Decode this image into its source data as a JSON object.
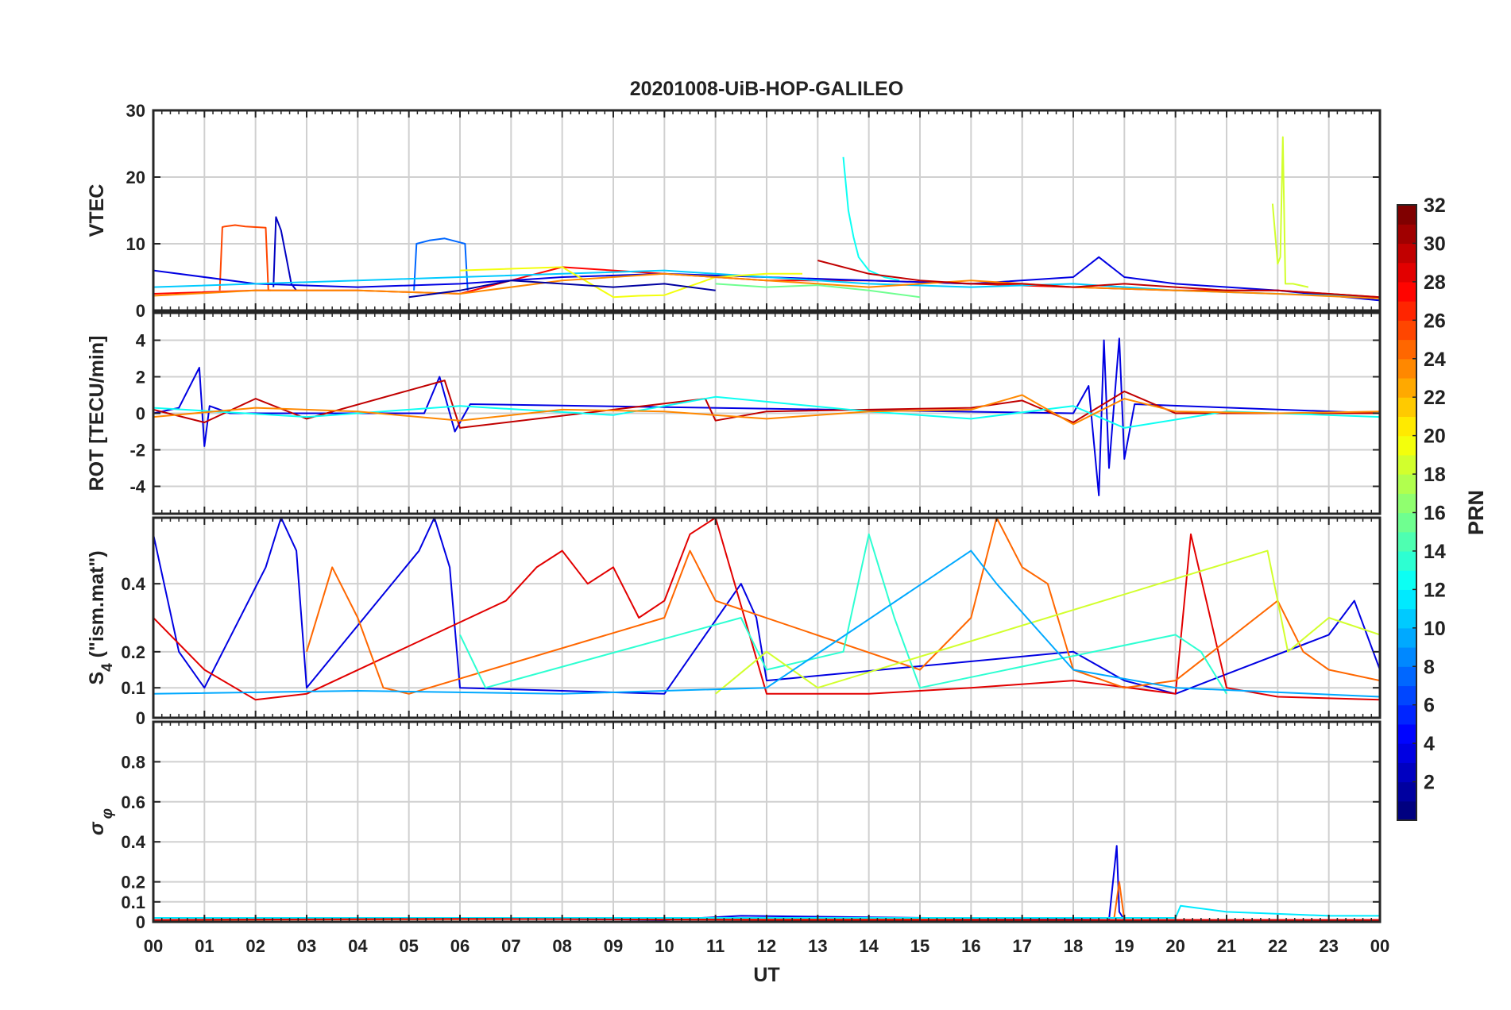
{
  "chart_data": {
    "title": "20201008-UiB-HOP-GALILEO",
    "xlabel": "UT",
    "x_ticks": [
      "00",
      "01",
      "02",
      "03",
      "04",
      "05",
      "06",
      "07",
      "08",
      "09",
      "10",
      "11",
      "12",
      "13",
      "14",
      "15",
      "16",
      "17",
      "18",
      "19",
      "20",
      "21",
      "22",
      "23",
      "00"
    ],
    "xlim": [
      0,
      24
    ],
    "grid": true,
    "colorbar": {
      "label": "PRN",
      "range": [
        1,
        32
      ],
      "ticks": [
        "2",
        "4",
        "6",
        "8",
        "10",
        "12",
        "14",
        "16",
        "18",
        "20",
        "22",
        "24",
        "26",
        "28",
        "30",
        "32"
      ],
      "colormap": "jet"
    },
    "panels": [
      {
        "type": "line",
        "ylabel": "VTEC",
        "ylim": [
          0,
          30
        ],
        "y_ticks": [
          "0",
          "10",
          "20",
          "30"
        ],
        "series": [
          {
            "prn": 26,
            "x": [
              1.3,
              1.35,
              1.4,
              1.6,
              1.8,
              2.0,
              2.2,
              2.25,
              2.3
            ],
            "y": [
              3,
              12.5,
              12.6,
              12.8,
              12.6,
              12.5,
              12.4,
              3,
              3
            ]
          },
          {
            "prn": 3,
            "x": [
              2.35,
              2.4,
              2.5,
              2.6,
              2.7,
              2.8
            ],
            "y": [
              3.5,
              14,
              12,
              8,
              4,
              3
            ]
          },
          {
            "prn": 8,
            "x": [
              5.1,
              5.15,
              5.4,
              5.7,
              6.0,
              6.1,
              6.15
            ],
            "y": [
              3,
              10,
              10.5,
              10.8,
              10.2,
              10,
              3
            ]
          },
          {
            "prn": 13,
            "x": [
              13.5,
              13.6,
              13.7,
              13.8,
              14.0,
              14.3,
              14.6
            ],
            "y": [
              23,
              15,
              11,
              8,
              6,
              5,
              4.5
            ]
          },
          {
            "prn": 19,
            "x": [
              21.9,
              22.0,
              22.05,
              22.1,
              22.15,
              22.3,
              22.6
            ],
            "y": [
              16,
              7,
              8,
              26,
              4,
              4,
              3.5
            ]
          },
          {
            "prn": 28,
            "x": [
              0,
              2,
              4,
              6,
              8,
              10,
              12,
              14,
              16,
              18,
              20,
              22,
              24
            ],
            "y": [
              2.5,
              3,
              3,
              2.5,
              6.5,
              5.5,
              4.5,
              4.5,
              4,
              3.5,
              3,
              3,
              2
            ]
          },
          {
            "prn": 4,
            "x": [
              0,
              2,
              4,
              6,
              8,
              10,
              12,
              14,
              16,
              18,
              18.5,
              19,
              20,
              22,
              24
            ],
            "y": [
              6,
              4,
              3.5,
              4,
              5,
              5.5,
              5,
              4.5,
              4,
              5,
              8,
              5,
              4,
              3,
              1.5
            ]
          },
          {
            "prn": 11,
            "x": [
              0,
              2,
              4,
              6,
              8,
              10,
              12,
              14,
              16,
              18,
              20,
              22,
              24
            ],
            "y": [
              3.5,
              4,
              4.5,
              5,
              5.5,
              6,
              5,
              4,
              3.5,
              4,
              3,
              2.5,
              2
            ]
          },
          {
            "prn": 20,
            "x": [
              6,
              8,
              9,
              9.5,
              10,
              11,
              12,
              12.7
            ],
            "y": [
              6,
              6.5,
              2,
              2.2,
              2.3,
              5,
              5.5,
              5.5
            ]
          },
          {
            "prn": 24,
            "x": [
              0,
              2,
              4,
              6,
              8,
              10,
              12,
              14,
              16,
              18,
              20,
              22,
              24
            ],
            "y": [
              2.2,
              3,
              3,
              2.5,
              4.5,
              5.5,
              4.5,
              3.5,
              4.5,
              3.5,
              3,
              2.5,
              1.8
            ]
          },
          {
            "prn": 16,
            "x": [
              11,
              12,
              13,
              14,
              15
            ],
            "y": [
              4,
              3.5,
              3.8,
              3,
              2
            ]
          },
          {
            "prn": 30,
            "x": [
              13,
              14,
              15,
              16,
              17,
              18,
              19,
              20,
              21,
              22,
              23,
              24
            ],
            "y": [
              7.5,
              5.5,
              4.5,
              4,
              4,
              3.5,
              4,
              3.5,
              3,
              3,
              2.5,
              2
            ]
          },
          {
            "prn": 2,
            "x": [
              5,
              6,
              7,
              8,
              9,
              10,
              11
            ],
            "y": [
              2,
              3,
              4.5,
              4,
              3.5,
              4,
              3
            ]
          }
        ]
      },
      {
        "type": "line",
        "ylabel": "ROT [TECU/min]",
        "ylim": [
          -5.5,
          5.5
        ],
        "y_ticks": [
          "-4",
          "-2",
          "0",
          "2",
          "4"
        ],
        "series": [
          {
            "prn": 4,
            "x": [
              0,
              0.5,
              0.9,
              1.0,
              1.1,
              1.5,
              5.3,
              5.6,
              5.9,
              6.2,
              18.0,
              18.3,
              18.5,
              18.6,
              18.7,
              18.9,
              19.0,
              19.2,
              24
            ],
            "y": [
              0,
              0.3,
              2.5,
              -1.8,
              0.4,
              0,
              0,
              2,
              -1,
              0.5,
              0,
              1.5,
              -4.5,
              4,
              -3,
              4.1,
              -2.5,
              0.5,
              0
            ]
          },
          {
            "prn": 30,
            "x": [
              0,
              1,
              2,
              3,
              5.7,
              6,
              9,
              10.8,
              11,
              12,
              16,
              17,
              18,
              19,
              20,
              24
            ],
            "y": [
              0.2,
              -0.5,
              0.8,
              -0.3,
              1.8,
              -0.8,
              0.2,
              0.8,
              -0.4,
              0.1,
              0.3,
              0.7,
              -0.5,
              1.2,
              0,
              0
            ]
          },
          {
            "prn": 13,
            "x": [
              0,
              3,
              6,
              9,
              11,
              14,
              16,
              18,
              19,
              21,
              24
            ],
            "y": [
              0.3,
              -0.2,
              0.4,
              -0.1,
              0.9,
              0.1,
              -0.3,
              0.4,
              -0.8,
              0.1,
              -0.2
            ]
          },
          {
            "prn": 24,
            "x": [
              0,
              2,
              4,
              6,
              8,
              10,
              12,
              14,
              16,
              17,
              18,
              19,
              20,
              22,
              24
            ],
            "y": [
              -0.2,
              0.3,
              0.1,
              -0.4,
              0.2,
              0.1,
              -0.3,
              0.1,
              0.2,
              1,
              -0.6,
              0.8,
              0.1,
              0,
              0.1
            ]
          }
        ]
      },
      {
        "type": "line",
        "ylabel": "S4 (\"ism.mat\")",
        "ylabel_main": "S",
        "ylabel_sub": "4",
        "ylabel_rest": " (\"ism.mat\")",
        "ylim": [
          0,
          0.6
        ],
        "y_scale": "nonlinear",
        "y_ticks": [
          "0",
          "0.1",
          "0.2",
          "0.4"
        ],
        "series": [
          {
            "prn": 4,
            "x": [
              0,
              0.5,
              1,
              2.2,
              2.5,
              2.8,
              3,
              5.2,
              5.5,
              5.8,
              6,
              10,
              11.5,
              11.8,
              12,
              18,
              19,
              20,
              23,
              23.5,
              24
            ],
            "y": [
              0.55,
              0.2,
              0.1,
              0.45,
              0.6,
              0.5,
              0.1,
              0.5,
              0.6,
              0.45,
              0.1,
              0.08,
              0.4,
              0.3,
              0.12,
              0.2,
              0.12,
              0.08,
              0.25,
              0.35,
              0.15
            ]
          },
          {
            "prn": 29,
            "x": [
              0,
              1,
              2,
              3,
              6.9,
              7.5,
              8,
              8.5,
              9,
              9.5,
              10,
              10.5,
              11,
              12,
              14,
              16,
              18,
              20,
              20.3,
              21,
              22,
              24
            ],
            "y": [
              0.3,
              0.15,
              0.06,
              0.08,
              0.35,
              0.45,
              0.5,
              0.4,
              0.45,
              0.3,
              0.35,
              0.55,
              0.6,
              0.08,
              0.08,
              0.1,
              0.12,
              0.08,
              0.55,
              0.1,
              0.07,
              0.06
            ]
          },
          {
            "prn": 25,
            "x": [
              3,
              3.5,
              4,
              4.5,
              5,
              10,
              10.5,
              11,
              15,
              16,
              16.5,
              17,
              17.5,
              18,
              19,
              20,
              22,
              22.5,
              23,
              24
            ],
            "y": [
              0.2,
              0.45,
              0.3,
              0.1,
              0.08,
              0.3,
              0.5,
              0.35,
              0.15,
              0.3,
              0.6,
              0.45,
              0.4,
              0.15,
              0.1,
              0.12,
              0.35,
              0.2,
              0.15,
              0.12
            ]
          },
          {
            "prn": 14,
            "x": [
              6,
              6.5,
              11.5,
              12,
              13.5,
              14,
              14.5,
              15,
              20,
              20.5,
              21
            ],
            "y": [
              0.25,
              0.1,
              0.3,
              0.15,
              0.2,
              0.55,
              0.3,
              0.1,
              0.25,
              0.2,
              0.08
            ]
          },
          {
            "prn": 19,
            "x": [
              11,
              12,
              12.5,
              13,
              21.8,
              22,
              22.2,
              23,
              24
            ],
            "y": [
              0.08,
              0.2,
              0.15,
              0.1,
              0.5,
              0.35,
              0.2,
              0.3,
              0.25
            ]
          },
          {
            "prn": 10,
            "x": [
              0,
              4,
              8,
              12,
              16,
              16.5,
              18,
              20,
              24
            ],
            "y": [
              0.08,
              0.09,
              0.08,
              0.1,
              0.5,
              0.4,
              0.15,
              0.1,
              0.07
            ]
          }
        ]
      },
      {
        "type": "line",
        "ylabel": "σφ",
        "ylabel_main": "σ",
        "ylabel_sub": "φ",
        "ylim": [
          0,
          1
        ],
        "y_ticks": [
          "0",
          "0.1",
          "0.2",
          "0.4",
          "0.6",
          "0.8"
        ],
        "series": [
          {
            "prn": 4,
            "x": [
              0,
              5,
              10,
              11.5,
              18.7,
              18.85,
              18.9,
              19.0,
              24
            ],
            "y": [
              0.02,
              0.02,
              0.01,
              0.03,
              0.01,
              0.38,
              0.05,
              0.01,
              0.01
            ]
          },
          {
            "prn": 25,
            "x": [
              0,
              18.8,
              18.9,
              19.0,
              24
            ],
            "y": [
              0.01,
              0.02,
              0.2,
              0.01,
              0.01
            ]
          },
          {
            "prn": 12,
            "x": [
              0,
              20,
              20.1,
              21,
              22,
              23,
              24
            ],
            "y": [
              0.02,
              0.02,
              0.08,
              0.05,
              0.04,
              0.03,
              0.03
            ]
          },
          {
            "prn": 29,
            "x": [
              0,
              6,
              12,
              18,
              24
            ],
            "y": [
              0.01,
              0.015,
              0.01,
              0.01,
              0.01
            ]
          }
        ]
      }
    ]
  }
}
